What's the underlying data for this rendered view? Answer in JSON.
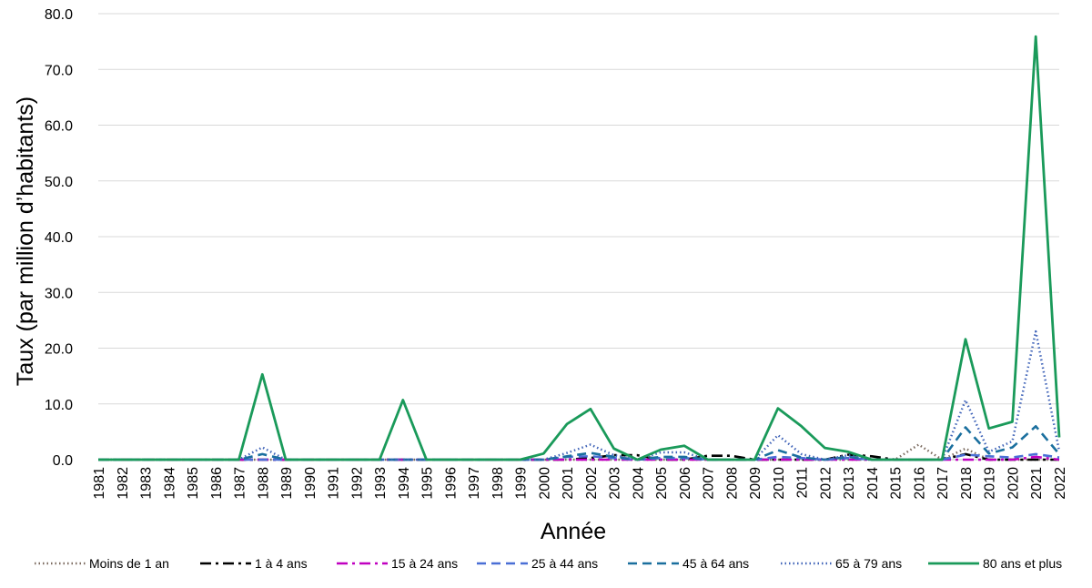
{
  "chart_data": {
    "type": "line",
    "title": "",
    "xlabel": "Année",
    "ylabel": "Taux (par million d’habitants)",
    "ylim": [
      0,
      80
    ],
    "yticks": [
      "0.0",
      "10.0",
      "20.0",
      "30.0",
      "40.0",
      "50.0",
      "60.0",
      "70.0",
      "80.0"
    ],
    "grid": "horizontal",
    "legend_position": "bottom",
    "categories": [
      "1981",
      "1982",
      "1983",
      "1984",
      "1985",
      "1986",
      "1987",
      "1988",
      "1989",
      "1990",
      "1991",
      "1992",
      "1993",
      "1994",
      "1995",
      "1996",
      "1997",
      "1998",
      "1999",
      "2000",
      "2001",
      "2002",
      "2003",
      "2004",
      "2005",
      "2006",
      "2007",
      "2008",
      "2009",
      "2010",
      "2011",
      "2012",
      "2013",
      "2014",
      "2015",
      "2016",
      "2017",
      "2018",
      "2019",
      "2020",
      "2021",
      "2022"
    ],
    "series": [
      {
        "name": "Moins de 1 an",
        "color": "#7b6a5f",
        "dash": "dotted",
        "values": [
          0,
          0,
          0,
          0,
          0,
          0,
          0,
          0,
          0,
          0,
          0,
          0,
          0,
          0,
          0,
          0,
          0,
          0,
          0,
          0,
          0,
          0,
          0,
          0,
          0,
          0,
          0,
          0,
          0,
          0,
          0,
          0,
          0,
          0,
          0,
          2.7,
          0,
          2.0,
          0,
          0,
          0,
          0
        ]
      },
      {
        "name": "1 à 4 ans",
        "color": "#000000",
        "dash": "dashdot",
        "values": [
          0,
          0,
          0,
          0,
          0,
          0,
          0,
          0,
          0,
          0,
          0,
          0,
          0,
          0,
          0,
          0,
          0,
          0,
          0,
          0,
          0,
          0.3,
          0.8,
          0.8,
          0,
          0,
          0.7,
          0.7,
          0,
          0,
          0,
          0,
          0.9,
          0.6,
          0,
          0,
          0,
          1.0,
          0,
          0,
          0,
          0
        ]
      },
      {
        "name": "15 à 24 ans",
        "color": "#c000c0",
        "dash": "dashdot",
        "values": [
          0,
          0,
          0,
          0,
          0,
          0,
          0,
          0,
          0,
          0,
          0,
          0,
          0,
          0,
          0,
          0,
          0,
          0,
          0,
          0,
          0,
          0,
          0,
          0,
          0,
          0,
          0,
          0,
          0,
          0,
          0,
          0,
          0,
          0,
          0,
          0,
          0,
          0,
          0,
          0,
          0.5,
          0
        ]
      },
      {
        "name": "25 à 44 ans",
        "color": "#4a6fd6",
        "dash": "dashed",
        "values": [
          0,
          0,
          0,
          0,
          0,
          0,
          0,
          0,
          0,
          0,
          0,
          0,
          0,
          0,
          0,
          0,
          0,
          0,
          0,
          0,
          0.5,
          0.6,
          0.3,
          0,
          0.3,
          0.3,
          0,
          0,
          0,
          0.5,
          0.3,
          0,
          0.3,
          0,
          0,
          0,
          0,
          0.9,
          0.6,
          0.4,
          1.0,
          0.4
        ]
      },
      {
        "name": "45 à 64 ans",
        "color": "#1a6f9e",
        "dash": "dashed",
        "values": [
          0,
          0,
          0,
          0,
          0,
          0,
          0,
          1.0,
          0,
          0,
          0,
          0,
          0,
          0,
          0,
          0,
          0,
          0,
          0,
          0,
          0.6,
          1.2,
          0.5,
          0,
          0.5,
          0.5,
          0,
          0,
          0,
          1.7,
          0.4,
          0,
          0.5,
          0,
          0,
          0,
          0,
          5.8,
          1.1,
          2.2,
          6.0,
          1.0
        ]
      },
      {
        "name": "65 à 79 ans",
        "color": "#3f63b8",
        "dash": "dotted",
        "values": [
          0,
          0,
          0,
          0,
          0,
          0,
          0,
          2.2,
          0,
          0,
          0,
          0,
          0,
          0,
          0,
          0,
          0,
          0,
          0,
          0,
          1.2,
          2.7,
          0.8,
          0,
          1.3,
          1.3,
          0,
          0,
          0,
          4.4,
          1.0,
          0,
          0.8,
          0,
          0,
          0,
          0,
          10.7,
          1.4,
          3.3,
          23.0,
          1.5
        ]
      },
      {
        "name": "80 ans et plus",
        "color": "#1a9a5a",
        "dash": "solid",
        "values": [
          0,
          0,
          0,
          0,
          0,
          0,
          0,
          15.3,
          0,
          0,
          0,
          0,
          0,
          10.7,
          0,
          0,
          0,
          0,
          0,
          1.1,
          6.4,
          9.1,
          2.0,
          0,
          1.8,
          2.5,
          0,
          0,
          0,
          9.2,
          6.0,
          2.1,
          1.4,
          0,
          0,
          0,
          0,
          21.6,
          5.6,
          6.8,
          75.9,
          4.0
        ]
      }
    ]
  }
}
